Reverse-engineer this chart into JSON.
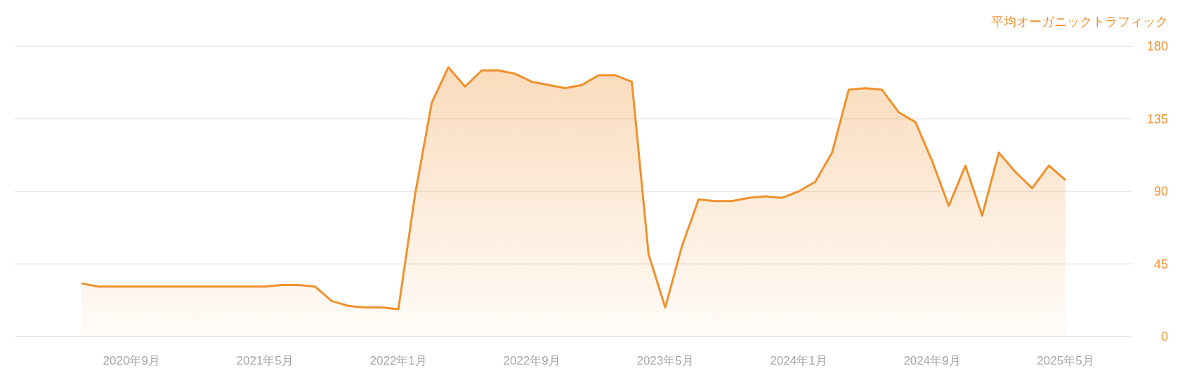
{
  "chart_data": {
    "type": "area",
    "ylabel": "平均オーガニックトラフィック",
    "color": "#f0902c",
    "x": [
      "2020-06",
      "2020-07",
      "2020-08",
      "2020-09",
      "2020-10",
      "2020-11",
      "2020-12",
      "2021-01",
      "2021-02",
      "2021-03",
      "2021-04",
      "2021-05",
      "2021-06",
      "2021-07",
      "2021-08",
      "2021-09",
      "2021-10",
      "2021-11",
      "2021-12",
      "2022-01",
      "2022-02",
      "2022-03",
      "2022-04",
      "2022-05",
      "2022-06",
      "2022-07",
      "2022-08",
      "2022-09",
      "2022-10",
      "2022-11",
      "2022-12",
      "2023-01",
      "2023-02",
      "2023-03",
      "2023-04",
      "2023-05",
      "2023-06",
      "2023-07",
      "2023-08",
      "2023-09",
      "2023-10",
      "2023-11",
      "2023-12",
      "2024-01",
      "2024-02",
      "2024-03",
      "2024-04",
      "2024-05",
      "2024-06",
      "2024-07",
      "2024-08",
      "2024-09",
      "2024-10",
      "2024-11",
      "2024-12",
      "2025-01",
      "2025-02",
      "2025-03",
      "2025-04",
      "2025-05"
    ],
    "values": [
      33,
      31,
      31,
      31,
      31,
      31,
      31,
      31,
      31,
      31,
      31,
      31,
      32,
      32,
      31,
      22,
      19,
      18,
      18,
      17,
      88,
      145,
      167,
      155,
      165,
      165,
      163,
      158,
      156,
      154,
      156,
      162,
      162,
      158,
      51,
      18,
      56,
      85,
      84,
      84,
      86,
      87,
      86,
      90,
      96,
      114,
      153,
      154,
      153,
      139,
      133,
      109,
      81,
      106,
      75,
      114,
      102,
      92,
      106,
      97
    ],
    "xlim": [
      "2020-02",
      "2025-09"
    ],
    "xticks": [
      {
        "value": "2020-09",
        "label": "2020年9月"
      },
      {
        "value": "2021-05",
        "label": "2021年5月"
      },
      {
        "value": "2022-01",
        "label": "2022年1月"
      },
      {
        "value": "2022-09",
        "label": "2022年9月"
      },
      {
        "value": "2023-05",
        "label": "2023年5月"
      },
      {
        "value": "2024-01",
        "label": "2024年1月"
      },
      {
        "value": "2024-09",
        "label": "2024年9月"
      },
      {
        "value": "2025-05",
        "label": "2025年5月"
      }
    ],
    "ylim": [
      0,
      180
    ],
    "yticks": [
      0,
      45,
      90,
      135,
      180
    ],
    "grid": "y"
  }
}
